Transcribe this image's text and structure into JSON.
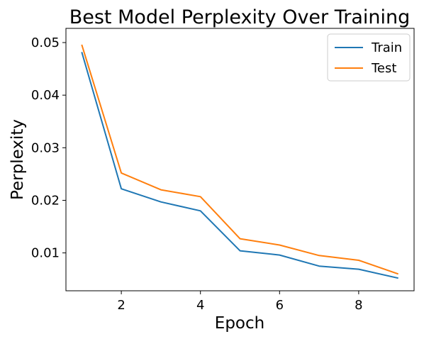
{
  "chart_data": {
    "type": "line",
    "title": "Best Model Perplexity Over Training",
    "xlabel": "Epoch",
    "ylabel": "Perplexity",
    "x": [
      1,
      2,
      3,
      4,
      5,
      6,
      7,
      8,
      9
    ],
    "xlim": [
      0.6,
      9.4
    ],
    "ylim": [
      0.0028,
      0.0527
    ],
    "xticks": [
      2,
      4,
      6,
      8
    ],
    "yticks": [
      0.01,
      0.02,
      0.03,
      0.04,
      0.05
    ],
    "xtick_labels": [
      "2",
      "4",
      "6",
      "8"
    ],
    "ytick_labels": [
      "0.01",
      "0.02",
      "0.03",
      "0.04",
      "0.05"
    ],
    "grid": false,
    "legend_position": "top-right",
    "series": [
      {
        "name": "Train",
        "color": "#1f77b4",
        "values": [
          0.0482,
          0.0222,
          0.0197,
          0.018,
          0.0104,
          0.0096,
          0.0075,
          0.0069,
          0.0052
        ]
      },
      {
        "name": "Test",
        "color": "#ff7f0e",
        "values": [
          0.0496,
          0.0252,
          0.022,
          0.0207,
          0.0127,
          0.0115,
          0.0095,
          0.0086,
          0.006
        ]
      }
    ]
  }
}
